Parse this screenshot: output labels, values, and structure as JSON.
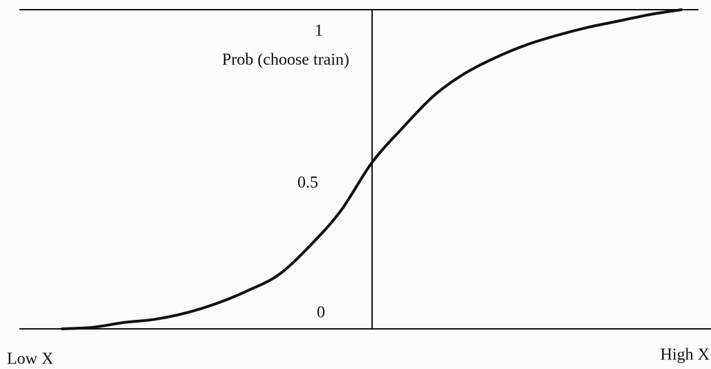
{
  "chart_data": {
    "type": "line",
    "y_label": "Prob (choose train)",
    "x_low_label": "Low X",
    "x_high_label": "High X",
    "categories": [
      null,
      null,
      null,
      null,
      null,
      null,
      null,
      null,
      null,
      null,
      null,
      null,
      null,
      null,
      null,
      null,
      null,
      null,
      null,
      null,
      null
    ],
    "series": [
      {
        "color": "#111111",
        "values": [
          0,
          0.005,
          0.02,
          0.03,
          0.05,
          0.08,
          0.12,
          0.17,
          0.26,
          0.37,
          0.52,
          0.63,
          0.73,
          0.8,
          0.85,
          0.89,
          0.92,
          0.945,
          0.965,
          0.985,
          1
        ]
      }
    ],
    "ylim": [
      0,
      1
    ],
    "yticks": [
      0,
      0.5,
      1
    ]
  }
}
